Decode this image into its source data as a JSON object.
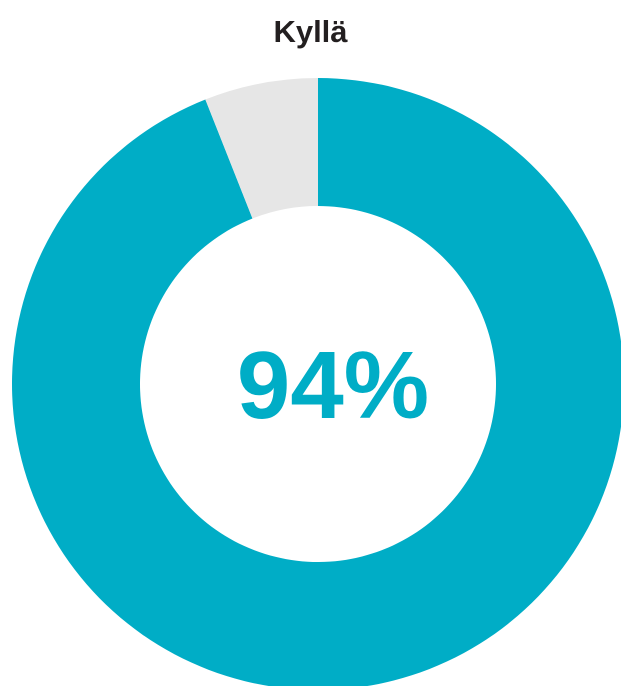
{
  "chart_data": {
    "type": "pie",
    "title": "Kyllä",
    "center_label": "94%",
    "slices": [
      {
        "value": 94,
        "color": "#00adc6"
      },
      {
        "value": 6,
        "color": "#e6e6e6"
      }
    ]
  }
}
